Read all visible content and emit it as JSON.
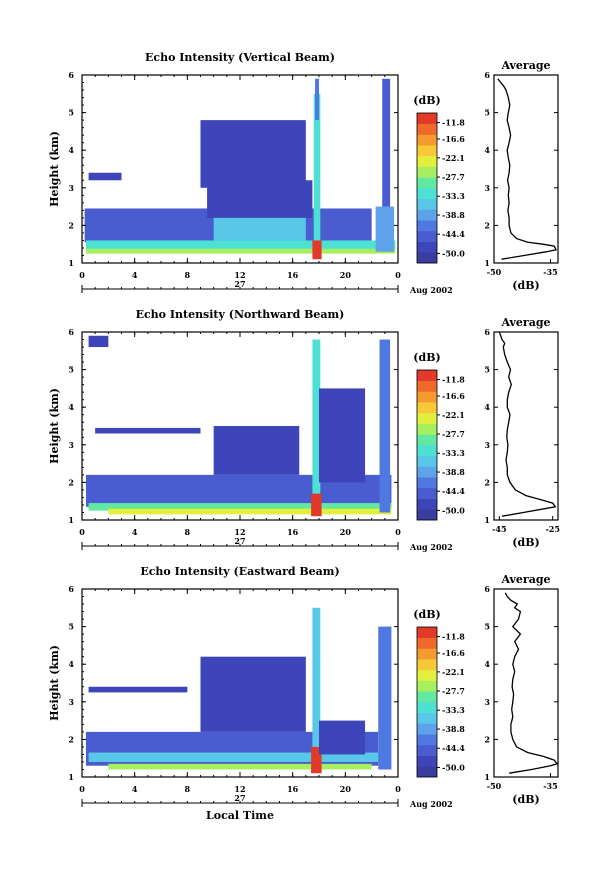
{
  "figure": {
    "xlabel": "Local Time",
    "date_label": "Aug 2002",
    "day_label": "27",
    "cb_unit": "(dB)",
    "colors": [
      "#3a3d9e",
      "#3e45b8",
      "#4a5dd0",
      "#4f79e0",
      "#5ea2ea",
      "#58c7e8",
      "#4fe0d4",
      "#62e8a0",
      "#a8ef60",
      "#e2ef3c",
      "#f7c838",
      "#f59a2e",
      "#ef6a2a",
      "#e23a2a"
    ]
  },
  "chart_data": [
    {
      "type": "heatmap",
      "title": "Echo Intensity (Vertical Beam)",
      "xlabel": "",
      "ylabel": "Height (km)",
      "xlim": [
        0,
        24
      ],
      "ylim": [
        1,
        6
      ],
      "x_ticks": [
        "0",
        "4",
        "8",
        "12",
        "16",
        "20",
        "0"
      ],
      "y_ticks": [
        "1",
        "2",
        "3",
        "4",
        "5",
        "6"
      ],
      "colorbar": {
        "unit": "(dB)",
        "ticks": [
          "-11.8",
          "-16.6",
          "-22.1",
          "-27.7",
          "-33.3",
          "-38.8",
          "-44.4",
          "-50.0"
        ],
        "range": [
          -52.8,
          -9.0
        ]
      },
      "average_profile": {
        "title": "Average",
        "xlabel": "(dB)",
        "x_ticks": [
          "-50",
          "-35"
        ],
        "xlim": [
          -50,
          -33
        ],
        "ylim": [
          1,
          6
        ],
        "x": [
          -48.0,
          -42.0,
          -36.0,
          -33.5,
          -34.0,
          -37.0,
          -41.0,
          -44.0,
          -45.5,
          -46.0,
          -46.0,
          -46.3,
          -46.0,
          -46.2,
          -46.0,
          -46.4,
          -46.0,
          -45.8,
          -46.2,
          -46.5,
          -46.0,
          -45.6,
          -46.0,
          -46.5,
          -46.2,
          -45.8,
          -46.2,
          -46.8,
          -47.4,
          -48.2,
          -49.0
        ],
        "y": [
          1.1,
          1.2,
          1.3,
          1.35,
          1.45,
          1.5,
          1.55,
          1.65,
          1.8,
          2.0,
          2.2,
          2.4,
          2.6,
          2.8,
          3.0,
          3.2,
          3.4,
          3.6,
          3.8,
          4.0,
          4.2,
          4.4,
          4.6,
          4.8,
          5.0,
          5.2,
          5.4,
          5.6,
          5.7,
          5.8,
          5.9
        ]
      },
      "patches": [
        {
          "x0": 0.2,
          "x1": 22.0,
          "y0": 1.55,
          "y1": 2.45,
          "level": 2
        },
        {
          "x0": 9.5,
          "x1": 17.5,
          "y0": 2.2,
          "y1": 3.2,
          "level": 1
        },
        {
          "x0": 0.3,
          "x1": 23.8,
          "y0": 1.35,
          "y1": 1.6,
          "level": 6
        },
        {
          "x0": 0.3,
          "x1": 23.8,
          "y0": 1.25,
          "y1": 1.38,
          "level": 8
        },
        {
          "x0": 17.5,
          "x1": 18.2,
          "y0": 1.1,
          "y1": 1.6,
          "level": 13
        },
        {
          "x0": 17.6,
          "x1": 18.1,
          "y0": 1.6,
          "y1": 5.5,
          "level": 6
        },
        {
          "x0": 17.7,
          "x1": 18.0,
          "y0": 4.8,
          "y1": 5.9,
          "level": 3
        },
        {
          "x0": 22.3,
          "x1": 23.7,
          "y0": 1.3,
          "y1": 2.5,
          "level": 4
        },
        {
          "x0": 22.8,
          "x1": 23.4,
          "y0": 2.5,
          "y1": 5.9,
          "level": 2
        },
        {
          "x0": 10.0,
          "x1": 17.0,
          "y0": 1.6,
          "y1": 2.2,
          "level": 5
        },
        {
          "x0": 9.0,
          "x1": 17.0,
          "y0": 3.0,
          "y1": 4.8,
          "level": 1
        },
        {
          "x0": 0.5,
          "x1": 3.0,
          "y0": 3.2,
          "y1": 3.4,
          "level": 1
        }
      ]
    },
    {
      "type": "heatmap",
      "title": "Echo Intensity (Northward Beam)",
      "xlabel": "",
      "ylabel": "Height (km)",
      "xlim": [
        0,
        24
      ],
      "ylim": [
        1,
        6
      ],
      "x_ticks": [
        "0",
        "4",
        "8",
        "12",
        "16",
        "20",
        "0"
      ],
      "y_ticks": [
        "1",
        "2",
        "3",
        "4",
        "5",
        "6"
      ],
      "colorbar": {
        "unit": "(dB)",
        "ticks": [
          "-11.8",
          "-16.6",
          "-22.1",
          "-27.7",
          "-33.3",
          "-38.8",
          "-44.4",
          "-50.0"
        ],
        "range": [
          -52.8,
          -9.0
        ]
      },
      "average_profile": {
        "title": "Average",
        "xlabel": "(dB)",
        "x_ticks": [
          "-45",
          "-25"
        ],
        "xlim": [
          -47,
          -23
        ],
        "ylim": [
          1,
          6
        ],
        "x": [
          -44.0,
          -36.0,
          -28.0,
          -24.0,
          -25.0,
          -30.0,
          -35.0,
          -39.0,
          -41.0,
          -42.0,
          -42.0,
          -42.5,
          -42.0,
          -41.8,
          -42.2,
          -42.0,
          -41.5,
          -41.0,
          -42.0,
          -42.0,
          -41.5,
          -40.5,
          -41.5,
          -40.8,
          -42.0,
          -43.0,
          -43.5,
          -43.0,
          -44.0,
          -44.5,
          -45.0
        ],
        "y": [
          1.1,
          1.2,
          1.3,
          1.35,
          1.45,
          1.55,
          1.65,
          1.8,
          2.0,
          2.2,
          2.4,
          2.6,
          2.8,
          3.0,
          3.2,
          3.4,
          3.6,
          3.8,
          4.0,
          4.2,
          4.4,
          4.6,
          4.8,
          5.0,
          5.2,
          5.4,
          5.6,
          5.7,
          5.8,
          5.9,
          6.0
        ]
      },
      "patches": [
        {
          "x0": 0.3,
          "x1": 23.5,
          "y0": 1.35,
          "y1": 2.2,
          "level": 2
        },
        {
          "x0": 0.5,
          "x1": 23.5,
          "y0": 1.25,
          "y1": 1.45,
          "level": 7
        },
        {
          "x0": 2.0,
          "x1": 23.5,
          "y0": 1.15,
          "y1": 1.3,
          "level": 9
        },
        {
          "x0": 17.4,
          "x1": 18.2,
          "y0": 1.1,
          "y1": 1.7,
          "level": 13
        },
        {
          "x0": 17.5,
          "x1": 18.1,
          "y0": 1.7,
          "y1": 5.8,
          "level": 6
        },
        {
          "x0": 10.0,
          "x1": 16.5,
          "y0": 2.2,
          "y1": 3.5,
          "level": 1
        },
        {
          "x0": 18.0,
          "x1": 21.5,
          "y0": 2.0,
          "y1": 4.5,
          "level": 1
        },
        {
          "x0": 22.6,
          "x1": 23.4,
          "y0": 1.2,
          "y1": 5.8,
          "level": 3
        },
        {
          "x0": 1.0,
          "x1": 9.0,
          "y0": 3.3,
          "y1": 3.45,
          "level": 1
        },
        {
          "x0": 0.5,
          "x1": 2.0,
          "y0": 5.6,
          "y1": 5.9,
          "level": 1
        }
      ]
    },
    {
      "type": "heatmap",
      "title": "Echo Intensity (Eastward Beam)",
      "xlabel": "Local Time",
      "ylabel": "Height (km)",
      "xlim": [
        0,
        24
      ],
      "ylim": [
        1,
        6
      ],
      "x_ticks": [
        "0",
        "4",
        "8",
        "12",
        "16",
        "20",
        "0"
      ],
      "y_ticks": [
        "1",
        "2",
        "3",
        "4",
        "5",
        "6"
      ],
      "colorbar": {
        "unit": "(dB)",
        "ticks": [
          "-11.8",
          "-16.6",
          "-22.1",
          "-27.7",
          "-33.3",
          "-38.8",
          "-44.4",
          "-50.0"
        ],
        "range": [
          -52.8,
          -9.0
        ]
      },
      "average_profile": {
        "title": "Average",
        "xlabel": "(dB)",
        "x_ticks": [
          "-50",
          "-35"
        ],
        "xlim": [
          -50,
          -33
        ],
        "ylim": [
          1,
          6
        ],
        "x": [
          -46.0,
          -40.0,
          -35.0,
          -33.2,
          -34.0,
          -37.0,
          -41.0,
          -44.0,
          -45.0,
          -45.5,
          -45.5,
          -45.0,
          -45.3,
          -45.0,
          -44.8,
          -45.2,
          -45.0,
          -44.5,
          -45.0,
          -44.5,
          -43.5,
          -44.5,
          -43.0,
          -45.0,
          -43.5,
          -43.0,
          -44.5,
          -43.8,
          -45.5,
          -46.5,
          -47.0
        ],
        "y": [
          1.1,
          1.2,
          1.3,
          1.35,
          1.45,
          1.55,
          1.65,
          1.8,
          2.0,
          2.2,
          2.4,
          2.6,
          2.8,
          3.0,
          3.2,
          3.4,
          3.6,
          3.8,
          4.0,
          4.2,
          4.4,
          4.6,
          4.8,
          5.0,
          5.2,
          5.4,
          5.5,
          5.6,
          5.7,
          5.8,
          5.9
        ]
      },
      "patches": [
        {
          "x0": 0.3,
          "x1": 22.5,
          "y0": 1.3,
          "y1": 2.2,
          "level": 2
        },
        {
          "x0": 9.0,
          "x1": 17.0,
          "y0": 2.2,
          "y1": 4.2,
          "level": 1
        },
        {
          "x0": 0.5,
          "x1": 22.5,
          "y0": 1.4,
          "y1": 1.65,
          "level": 5
        },
        {
          "x0": 2.0,
          "x1": 22.0,
          "y0": 1.2,
          "y1": 1.35,
          "level": 8
        },
        {
          "x0": 17.4,
          "x1": 18.2,
          "y0": 1.1,
          "y1": 1.8,
          "level": 13
        },
        {
          "x0": 17.5,
          "x1": 18.1,
          "y0": 1.8,
          "y1": 5.5,
          "level": 5
        },
        {
          "x0": 22.5,
          "x1": 23.5,
          "y0": 1.2,
          "y1": 5.0,
          "level": 3
        },
        {
          "x0": 0.5,
          "x1": 8.0,
          "y0": 3.25,
          "y1": 3.4,
          "level": 1
        },
        {
          "x0": 18.0,
          "x1": 21.5,
          "y0": 1.6,
          "y1": 2.5,
          "level": 1
        }
      ]
    }
  ]
}
